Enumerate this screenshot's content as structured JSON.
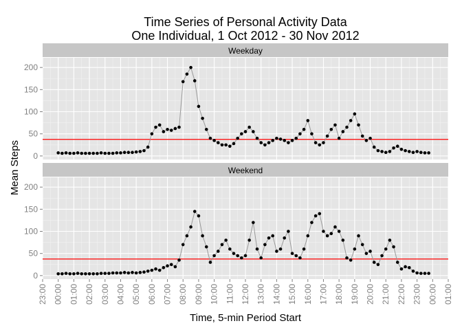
{
  "chart_data": {
    "type": "scatter",
    "title_line1": "Time Series of Personal Activity Data",
    "title_line2": "One Individual, 1 Oct 2012 - 30 Nov 2012",
    "xlabel": "Time, 5-min Period Start",
    "ylabel": "Mean Steps",
    "x_tick_labels": [
      "23:00",
      "00:00",
      "01:00",
      "02:00",
      "03:00",
      "04:00",
      "05:00",
      "06:00",
      "07:00",
      "08:00",
      "09:00",
      "10:00",
      "11:00",
      "12:00",
      "13:00",
      "14:00",
      "15:00",
      "16:00",
      "17:00",
      "18:00",
      "19:00",
      "20:00",
      "21:00",
      "22:00",
      "23:00",
      "00:00",
      "01:00"
    ],
    "xlim_hours": [
      -1,
      25
    ],
    "y_ticks": [
      0,
      50,
      100,
      150,
      200
    ],
    "ylim": [
      -8,
      222
    ],
    "reference_line": {
      "y": 37.4,
      "color": "#ff0000"
    },
    "grid": true,
    "colors": {
      "panel_bg": "#e5e5e5",
      "strip_bg": "#c6c6c6",
      "point": "#000000",
      "line": "#999999"
    },
    "panels": [
      {
        "strip": "Weekday",
        "series": {
          "x_hours": [
            0,
            0.25,
            0.5,
            0.75,
            1,
            1.25,
            1.5,
            1.75,
            2,
            2.25,
            2.5,
            2.75,
            3,
            3.25,
            3.5,
            3.75,
            4,
            4.25,
            4.5,
            4.75,
            5,
            5.25,
            5.5,
            5.75,
            6,
            6.25,
            6.5,
            6.75,
            7,
            7.25,
            7.5,
            7.75,
            8,
            8.25,
            8.5,
            8.75,
            9,
            9.25,
            9.5,
            9.75,
            10,
            10.25,
            10.5,
            10.75,
            11,
            11.25,
            11.5,
            11.75,
            12,
            12.25,
            12.5,
            12.75,
            13,
            13.25,
            13.5,
            13.75,
            14,
            14.25,
            14.5,
            14.75,
            15,
            15.25,
            15.5,
            15.75,
            16,
            16.25,
            16.5,
            16.75,
            17,
            17.25,
            17.5,
            17.75,
            18,
            18.25,
            18.5,
            18.75,
            19,
            19.25,
            19.5,
            19.75,
            20,
            20.25,
            20.5,
            20.75,
            21,
            21.25,
            21.5,
            21.75,
            22,
            22.25,
            22.5,
            22.75,
            23,
            23.25,
            23.5,
            23.75
          ],
          "values": [
            7,
            6,
            7,
            6,
            6,
            7,
            6,
            6,
            6,
            6,
            6,
            7,
            6,
            6,
            6,
            7,
            7,
            8,
            8,
            8,
            9,
            10,
            12,
            20,
            50,
            65,
            70,
            55,
            60,
            58,
            62,
            65,
            168,
            185,
            200,
            170,
            112,
            85,
            60,
            40,
            35,
            30,
            25,
            25,
            22,
            28,
            40,
            50,
            55,
            65,
            55,
            40,
            30,
            25,
            30,
            35,
            40,
            38,
            35,
            30,
            35,
            40,
            50,
            60,
            80,
            50,
            30,
            25,
            30,
            45,
            60,
            70,
            40,
            55,
            65,
            80,
            95,
            70,
            45,
            35,
            40,
            20,
            12,
            10,
            8,
            10,
            18,
            22,
            15,
            12,
            10,
            8,
            10,
            8,
            7,
            7
          ]
        }
      },
      {
        "strip": "Weekend",
        "series": {
          "x_hours": [
            0,
            0.25,
            0.5,
            0.75,
            1,
            1.25,
            1.5,
            1.75,
            2,
            2.25,
            2.5,
            2.75,
            3,
            3.25,
            3.5,
            3.75,
            4,
            4.25,
            4.5,
            4.75,
            5,
            5.25,
            5.5,
            5.75,
            6,
            6.25,
            6.5,
            6.75,
            7,
            7.25,
            7.5,
            7.75,
            8,
            8.25,
            8.5,
            8.75,
            9,
            9.25,
            9.5,
            9.75,
            10,
            10.25,
            10.5,
            10.75,
            11,
            11.25,
            11.5,
            11.75,
            12,
            12.25,
            12.5,
            12.75,
            13,
            13.25,
            13.5,
            13.75,
            14,
            14.25,
            14.5,
            14.75,
            15,
            15.25,
            15.5,
            15.75,
            16,
            16.25,
            16.5,
            16.75,
            17,
            17.25,
            17.5,
            17.75,
            18,
            18.25,
            18.5,
            18.75,
            19,
            19.25,
            19.5,
            19.75,
            20,
            20.25,
            20.5,
            20.75,
            21,
            21.25,
            21.5,
            21.75,
            22,
            22.25,
            22.5,
            22.75,
            23,
            23.25,
            23.5,
            23.75
          ],
          "values": [
            4,
            4,
            5,
            4,
            4,
            5,
            4,
            4,
            4,
            4,
            4,
            5,
            5,
            5,
            6,
            6,
            6,
            7,
            6,
            7,
            6,
            7,
            8,
            10,
            12,
            15,
            12,
            18,
            22,
            25,
            20,
            35,
            70,
            90,
            110,
            145,
            135,
            90,
            65,
            30,
            45,
            55,
            70,
            80,
            60,
            50,
            45,
            40,
            45,
            80,
            120,
            60,
            40,
            70,
            85,
            90,
            55,
            60,
            85,
            100,
            50,
            45,
            40,
            60,
            90,
            120,
            135,
            140,
            100,
            90,
            95,
            110,
            100,
            80,
            40,
            35,
            60,
            90,
            70,
            50,
            55,
            30,
            25,
            45,
            60,
            80,
            65,
            30,
            15,
            20,
            18,
            10,
            6,
            5,
            5,
            5
          ]
        }
      }
    ]
  }
}
